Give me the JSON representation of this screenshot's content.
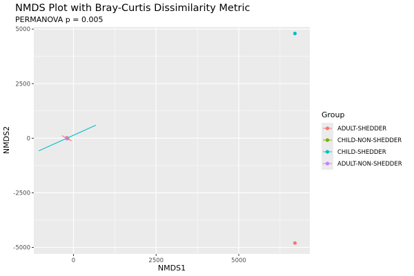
{
  "chart_data": {
    "type": "scatter",
    "title": "NMDS Plot with Bray-Curtis Dissimilarity Metric",
    "subtitle": "PERMANOVA p = 0.005",
    "xlabel": "NMDS1",
    "ylabel": "NMDS2",
    "xlim": [
      -1200,
      7150
    ],
    "ylim": [
      -5300,
      5100
    ],
    "x_ticks": [
      0,
      2500,
      5000
    ],
    "x_tick_labels": [
      "0",
      "2500",
      "5000"
    ],
    "y_ticks": [
      -5000,
      -2500,
      0,
      2500,
      5000
    ],
    "y_tick_labels": [
      "-5000",
      "-2500",
      "0",
      "2500",
      "5000"
    ],
    "grid": true,
    "legend": {
      "title": "Group",
      "position": "right",
      "entries": [
        {
          "label": "ADULT-SHEDDER",
          "color": "#F8766D"
        },
        {
          "label": "CHILD-NON-SHEDDER",
          "color": "#7CAE00"
        },
        {
          "label": "CHILD-SHEDDER",
          "color": "#00BFC4"
        },
        {
          "label": "ADULT-NON-SHEDDER",
          "color": "#C77CFF"
        }
      ]
    },
    "series": [
      {
        "name": "ADULT-SHEDDER",
        "color": "#F8766D",
        "points": [
          {
            "x": -200,
            "y": 20
          },
          {
            "x": -180,
            "y": -10
          },
          {
            "x": 6700,
            "y": -4800
          }
        ],
        "segments": [
          {
            "x1": -350,
            "y1": 120,
            "x2": -60,
            "y2": -120
          }
        ]
      },
      {
        "name": "CHILD-NON-SHEDDER",
        "color": "#7CAE00",
        "points": [
          {
            "x": -190,
            "y": 0
          }
        ],
        "segments": []
      },
      {
        "name": "CHILD-SHEDDER",
        "color": "#00BFC4",
        "points": [
          {
            "x": 6700,
            "y": 4800
          }
        ],
        "segments": [
          {
            "x1": -1050,
            "y1": -580,
            "x2": 680,
            "y2": 600
          }
        ]
      },
      {
        "name": "ADULT-NON-SHEDDER",
        "color": "#C77CFF",
        "points": [
          {
            "x": -200,
            "y": -10
          }
        ],
        "segments": []
      }
    ]
  }
}
